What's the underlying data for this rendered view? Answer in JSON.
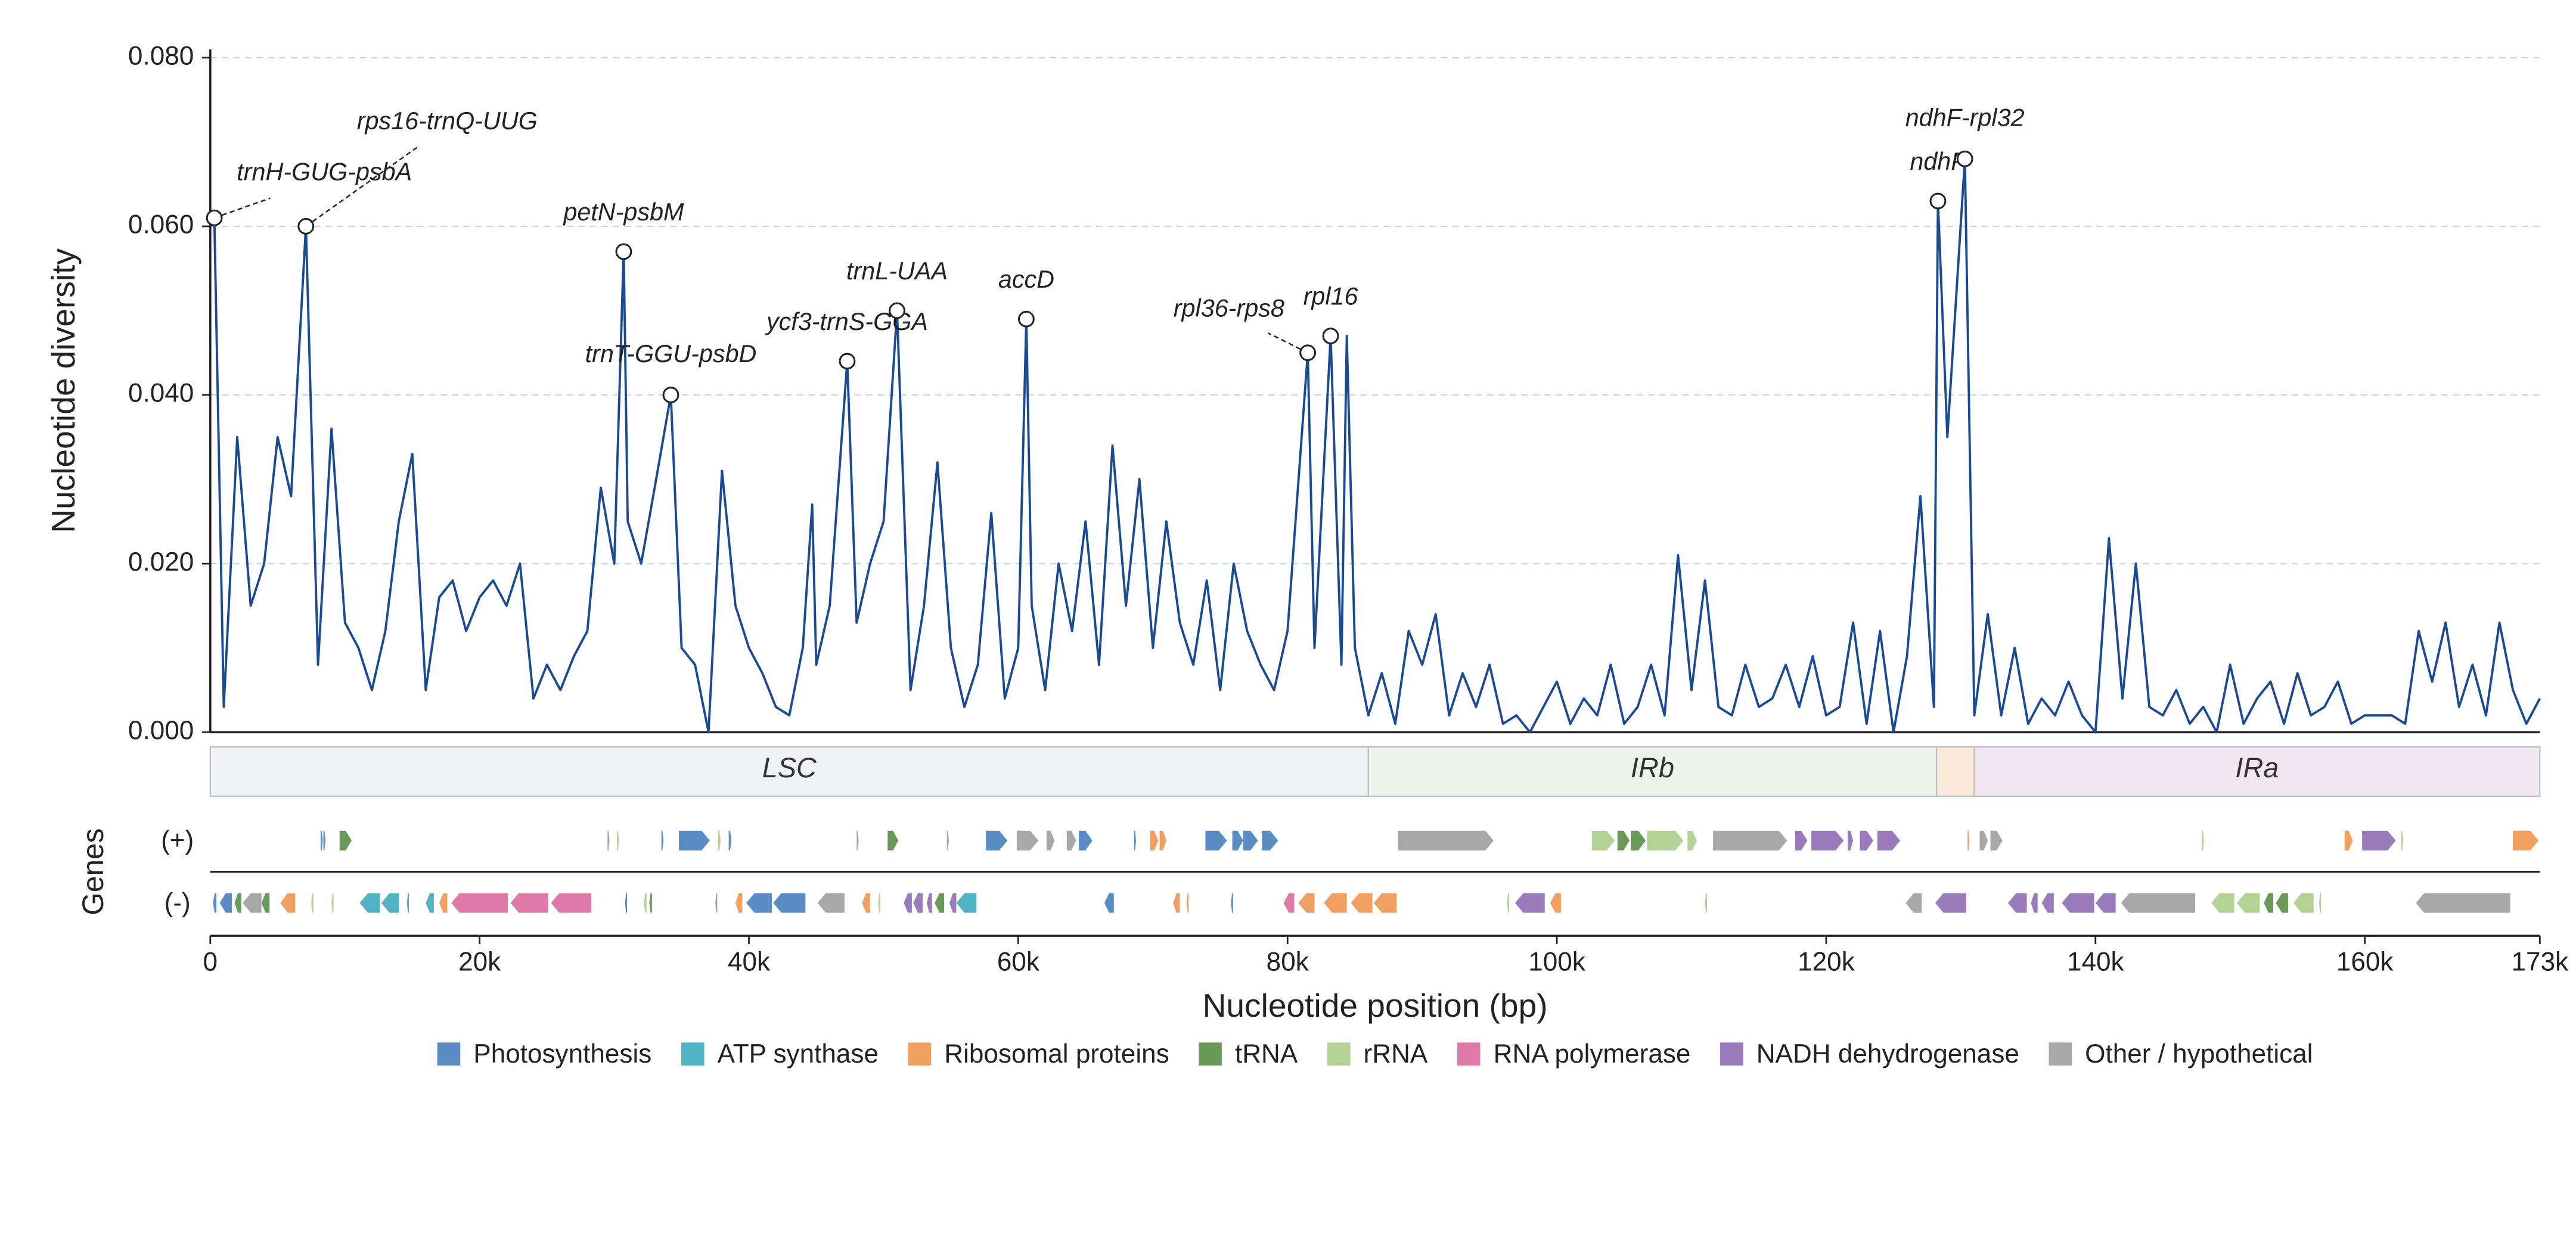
{
  "chart_data": {
    "type": "line",
    "ylabel": "Nucleotide diversity",
    "xlabel": "Nucleotide position (bp)",
    "xlim": [
      0,
      173000
    ],
    "ylim": [
      0,
      0.081
    ],
    "yticks": [
      {
        "value": 0,
        "label": "0.000"
      },
      {
        "value": 0.02,
        "label": "0.020"
      },
      {
        "value": 0.04,
        "label": "0.040"
      },
      {
        "value": 0.06,
        "label": "0.060"
      },
      {
        "value": 0.08,
        "label": "0.080"
      }
    ],
    "xticks": [
      0,
      {
        "value": 20000,
        "label": "20k"
      },
      {
        "value": 40000,
        "label": "40k"
      },
      {
        "value": 60000,
        "label": "60k"
      },
      {
        "value": 80000,
        "label": "80k"
      },
      {
        "value": 100000,
        "label": "100k"
      },
      {
        "value": 120000,
        "label": "120k"
      },
      {
        "value": 140000,
        "label": "140k"
      },
      {
        "value": 160000,
        "label": "160k"
      },
      {
        "value": 173000,
        "label": "173k"
      }
    ],
    "grid": true,
    "color": "#1a4a94",
    "x": [
      0,
      300,
      1000,
      2000,
      3000,
      4000,
      5000,
      6000,
      7100,
      8000,
      9000,
      10000,
      11000,
      12000,
      13000,
      14000,
      15000,
      16000,
      17000,
      18000,
      19000,
      20000,
      21000,
      22000,
      23000,
      24000,
      25000,
      26000,
      27000,
      28000,
      29000,
      30000,
      30700,
      31000,
      32000,
      33000,
      34200,
      35000,
      36000,
      37000,
      38000,
      39000,
      40000,
      41000,
      42000,
      43000,
      44000,
      44700,
      45000,
      46000,
      47300,
      48000,
      49000,
      50000,
      51000,
      52000,
      53000,
      54000,
      55000,
      56000,
      57000,
      58000,
      59000,
      60000,
      60600,
      61000,
      62000,
      63000,
      64000,
      65000,
      66000,
      67000,
      68000,
      69000,
      70000,
      71000,
      72000,
      73000,
      74000,
      75000,
      76000,
      77000,
      78000,
      79000,
      80000,
      81500,
      82000,
      83200,
      84000,
      84400,
      85000,
      86000,
      87000,
      88000,
      89000,
      90000,
      91000,
      92000,
      93000,
      94000,
      95000,
      96000,
      97000,
      98000,
      99000,
      100000,
      101000,
      102000,
      103000,
      104000,
      105000,
      106000,
      107000,
      108000,
      109000,
      110000,
      111000,
      112000,
      113000,
      114000,
      115000,
      116000,
      117000,
      118000,
      119000,
      120000,
      121000,
      122000,
      123000,
      124000,
      125000,
      126000,
      127000,
      128000,
      128300,
      129000,
      130300,
      131000,
      132000,
      133000,
      134000,
      135000,
      136000,
      137000,
      138000,
      139000,
      140000,
      141000,
      142000,
      143000,
      144000,
      145000,
      146000,
      147000,
      148000,
      149000,
      150000,
      151000,
      152000,
      153000,
      154000,
      155000,
      156000,
      157000,
      158000,
      159000,
      160000,
      161000,
      162000,
      163000,
      164000,
      165000,
      166000,
      167000,
      168000,
      169000,
      170000,
      171000,
      172000,
      173000
    ],
    "values": [
      0.06,
      0.061,
      0.003,
      0.035,
      0.015,
      0.02,
      0.035,
      0.028,
      0.06,
      0.008,
      0.036,
      0.013,
      0.01,
      0.005,
      0.012,
      0.025,
      0.033,
      0.005,
      0.016,
      0.018,
      0.012,
      0.016,
      0.018,
      0.015,
      0.02,
      0.004,
      0.008,
      0.005,
      0.009,
      0.012,
      0.029,
      0.02,
      0.057,
      0.025,
      0.02,
      0.029,
      0.04,
      0.01,
      0.008,
      0.0,
      0.031,
      0.015,
      0.01,
      0.007,
      0.003,
      0.002,
      0.01,
      0.027,
      0.008,
      0.015,
      0.044,
      0.013,
      0.02,
      0.025,
      0.05,
      0.005,
      0.015,
      0.032,
      0.01,
      0.003,
      0.008,
      0.026,
      0.004,
      0.01,
      0.049,
      0.015,
      0.005,
      0.02,
      0.012,
      0.025,
      0.008,
      0.034,
      0.015,
      0.03,
      0.01,
      0.025,
      0.013,
      0.008,
      0.018,
      0.005,
      0.02,
      0.012,
      0.008,
      0.005,
      0.012,
      0.045,
      0.01,
      0.047,
      0.008,
      0.047,
      0.01,
      0.002,
      0.007,
      0.001,
      0.012,
      0.008,
      0.014,
      0.002,
      0.007,
      0.003,
      0.008,
      0.001,
      0.002,
      0.0,
      0.003,
      0.006,
      0.001,
      0.004,
      0.002,
      0.008,
      0.001,
      0.003,
      0.008,
      0.002,
      0.021,
      0.005,
      0.018,
      0.003,
      0.002,
      0.008,
      0.003,
      0.004,
      0.008,
      0.003,
      0.009,
      0.002,
      0.003,
      0.013,
      0.001,
      0.012,
      0.0,
      0.009,
      0.028,
      0.003,
      0.063,
      0.035,
      0.068,
      0.002,
      0.014,
      0.002,
      0.01,
      0.001,
      0.004,
      0.002,
      0.006,
      0.002,
      0.0,
      0.023,
      0.004,
      0.02,
      0.003,
      0.002,
      0.005,
      0.001,
      0.003,
      0.0,
      0.008,
      0.001,
      0.004,
      0.006,
      0.001,
      0.007,
      0.002,
      0.003,
      0.006,
      0.001,
      0.002,
      0.002,
      0.002,
      0.001,
      0.012,
      0.006,
      0.013,
      0.003,
      0.008,
      0.002,
      0.013,
      0.005,
      0.001,
      0.004
    ],
    "annotations": [
      {
        "text": "trnH-GUG-psbA",
        "x": 300,
        "y": 0.061
      },
      {
        "text": "rps16-trnQ-UUG",
        "x": 7100,
        "y": 0.06
      },
      {
        "text": "petN-psbM",
        "x": 30700,
        "y": 0.057
      },
      {
        "text": "trnT-GGU-psbD",
        "x": 34200,
        "y": 0.04
      },
      {
        "text": "ycf3-trnS-GGA",
        "x": 47300,
        "y": 0.044
      },
      {
        "text": "trnL-UAA",
        "x": 51000,
        "y": 0.05
      },
      {
        "text": "accD",
        "x": 60600,
        "y": 0.049
      },
      {
        "text": "rpl36-rps8",
        "x": 81500,
        "y": 0.045
      },
      {
        "text": "rpl16",
        "x": 83200,
        "y": 0.047
      },
      {
        "text": "ndhF",
        "x": 128300,
        "y": 0.063
      },
      {
        "text": "ndhF-rpl32",
        "x": 130300,
        "y": 0.068
      }
    ],
    "regions": [
      {
        "name": "LSC",
        "start": 0,
        "end": 86000,
        "color": "#eef2f5"
      },
      {
        "name": "IRb",
        "start": 86000,
        "end": 128200,
        "color": "#eef3ea"
      },
      {
        "name": null,
        "start": 128200,
        "end": 131000,
        "color": "#fbe9d9"
      },
      {
        "name": "IRa",
        "start": 131000,
        "end": 173000,
        "color": "#f2e7f1"
      }
    ],
    "gene_track_label": "Genes",
    "gene_groups": [
      {
        "name": "Photosynthesis",
        "color": "#5b8cc4"
      },
      {
        "name": "ATP synthase",
        "color": "#52b3c4"
      },
      {
        "name": "Ribosomal proteins",
        "color": "#f0a060"
      },
      {
        "name": "tRNA",
        "color": "#6a9a5a"
      },
      {
        "name": "rRNA",
        "color": "#b2d394"
      },
      {
        "name": "RNA polymerase",
        "color": "#e07aaa"
      },
      {
        "name": "NADH dehydrogenase",
        "color": "#9a7bbb"
      },
      {
        "name": "Other / hypothetical",
        "color": "#a8a8a8"
      }
    ],
    "gene_tracks": [
      {
        "label": "(+)",
        "genes": [
          [
            8200,
            8350,
            0
          ],
          [
            8400,
            8550,
            0
          ],
          [
            9600,
            10500,
            3
          ],
          [
            29500,
            29650,
            7
          ],
          [
            30200,
            30350,
            4
          ],
          [
            33500,
            33650,
            0
          ],
          [
            34800,
            37100,
            0
          ],
          [
            37700,
            37900,
            4
          ],
          [
            38500,
            38700,
            0
          ],
          [
            48000,
            48150,
            7
          ],
          [
            50300,
            51100,
            3
          ],
          [
            54700,
            54850,
            7
          ],
          [
            57600,
            59200,
            0
          ],
          [
            59900,
            61500,
            7
          ],
          [
            62100,
            62700,
            7
          ],
          [
            63600,
            64300,
            7
          ],
          [
            64500,
            65500,
            0
          ],
          [
            68600,
            68750,
            0
          ],
          [
            69800,
            70400,
            2
          ],
          [
            70500,
            71000,
            2
          ],
          [
            73900,
            75500,
            0
          ],
          [
            75900,
            76700,
            0
          ],
          [
            76700,
            77800,
            0
          ],
          [
            78100,
            79300,
            0
          ],
          [
            88200,
            95300,
            7
          ],
          [
            102600,
            104300,
            4
          ],
          [
            104500,
            105400,
            3
          ],
          [
            105500,
            106600,
            3
          ],
          [
            106700,
            109400,
            4
          ],
          [
            109700,
            110400,
            4
          ],
          [
            111600,
            117100,
            7
          ],
          [
            117700,
            118600,
            6
          ],
          [
            118900,
            121300,
            6
          ],
          [
            121600,
            122000,
            6
          ],
          [
            122500,
            123500,
            6
          ],
          [
            123800,
            125500,
            6
          ],
          [
            130500,
            130650,
            2
          ],
          [
            131400,
            132000,
            7
          ],
          [
            132200,
            133100,
            7
          ],
          [
            147900,
            148050,
            4
          ],
          [
            158500,
            159100,
            2
          ],
          [
            159800,
            162300,
            6
          ],
          [
            162700,
            162850,
            4
          ],
          [
            171000,
            172900,
            2
          ]
        ]
      },
      {
        "label": "(-)",
        "genes": [
          [
            200,
            450,
            0
          ],
          [
            700,
            1600,
            0
          ],
          [
            1800,
            2300,
            3
          ],
          [
            2400,
            3800,
            7
          ],
          [
            3800,
            4400,
            3
          ],
          [
            5200,
            6300,
            2
          ],
          [
            7500,
            7650,
            4
          ],
          [
            9000,
            9150,
            4
          ],
          [
            11100,
            12600,
            1
          ],
          [
            12700,
            14000,
            1
          ],
          [
            14600,
            14750,
            1
          ],
          [
            16000,
            16600,
            1
          ],
          [
            17000,
            17600,
            2
          ],
          [
            17900,
            22100,
            5
          ],
          [
            22300,
            25100,
            5
          ],
          [
            25300,
            28300,
            5
          ],
          [
            30800,
            30950,
            0
          ],
          [
            32200,
            32400,
            4
          ],
          [
            32600,
            32800,
            3
          ],
          [
            37500,
            37650,
            7
          ],
          [
            39000,
            39500,
            2
          ],
          [
            39800,
            41700,
            0
          ],
          [
            41800,
            44200,
            0
          ],
          [
            45100,
            47100,
            7
          ],
          [
            48400,
            49000,
            2
          ],
          [
            49600,
            49750,
            4
          ],
          [
            51500,
            52100,
            6
          ],
          [
            52200,
            52900,
            6
          ],
          [
            53200,
            53600,
            6
          ],
          [
            53800,
            54500,
            3
          ],
          [
            54900,
            55400,
            6
          ],
          [
            55400,
            56900,
            1
          ],
          [
            66400,
            67100,
            0
          ],
          [
            71500,
            72000,
            2
          ],
          [
            72500,
            72650,
            2
          ],
          [
            75800,
            75950,
            0
          ],
          [
            79700,
            80500,
            5
          ],
          [
            80800,
            82000,
            2
          ],
          [
            82700,
            84400,
            2
          ],
          [
            84700,
            86300,
            2
          ],
          [
            86400,
            88100,
            2
          ],
          [
            96300,
            96450,
            4
          ],
          [
            96900,
            99100,
            6
          ],
          [
            99500,
            100300,
            2
          ],
          [
            111000,
            111150,
            4
          ],
          [
            125900,
            127100,
            7
          ],
          [
            128100,
            130400,
            6
          ],
          [
            133500,
            134900,
            6
          ],
          [
            135200,
            135700,
            6
          ],
          [
            136000,
            136900,
            6
          ],
          [
            137500,
            139900,
            6
          ],
          [
            140000,
            141500,
            6
          ],
          [
            141900,
            147400,
            7
          ],
          [
            148600,
            150300,
            4
          ],
          [
            150500,
            152200,
            4
          ],
          [
            152500,
            153200,
            3
          ],
          [
            153400,
            154300,
            3
          ],
          [
            154700,
            156200,
            4
          ],
          [
            156600,
            156750,
            4
          ],
          [
            163800,
            170800,
            7
          ]
        ]
      }
    ]
  }
}
